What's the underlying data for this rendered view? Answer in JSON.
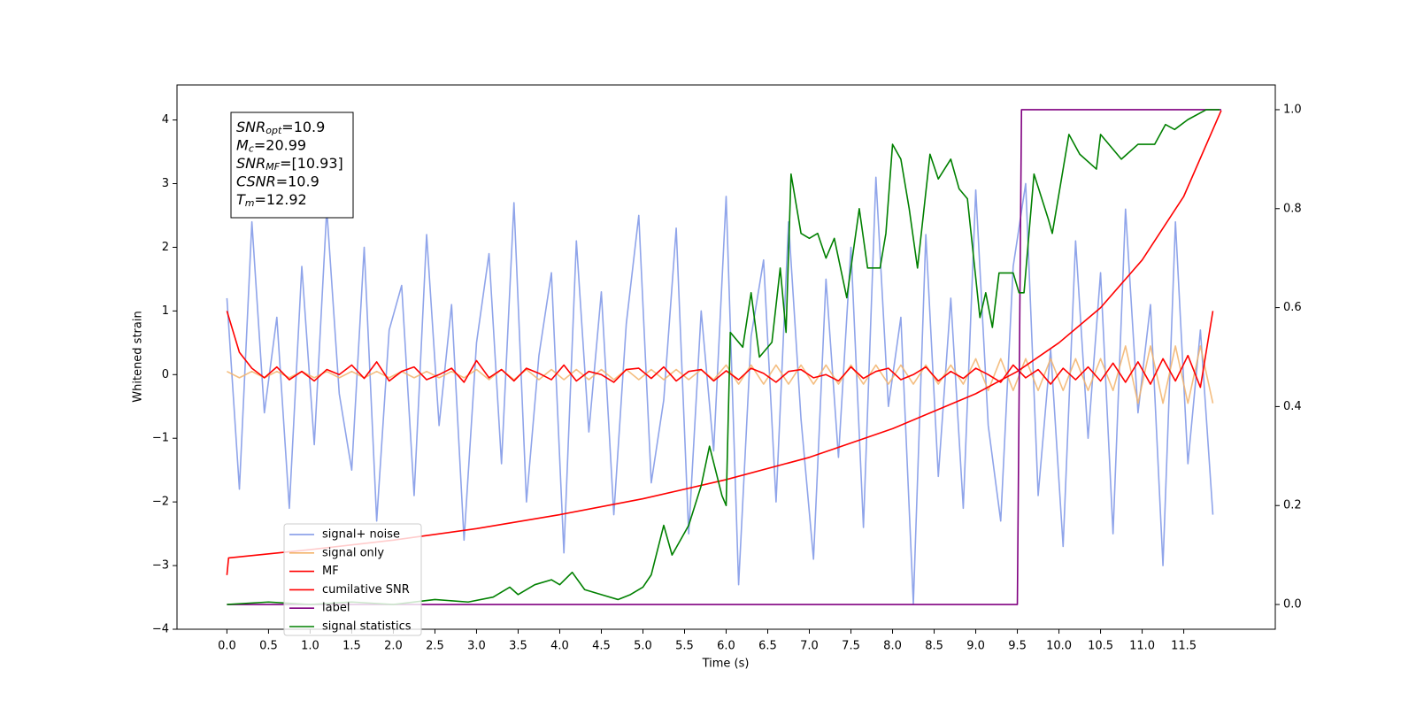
{
  "chart_data": {
    "type": "line",
    "xlabel": "Time (s)",
    "ylabel": "Whitened strain",
    "xlim": [
      -0.6,
      12.6
    ],
    "ylim": [
      -4.0,
      4.55
    ],
    "y2lim": [
      -0.05,
      1.05
    ],
    "xticks": [
      {
        "value": 0,
        "label": "0.0"
      },
      {
        "value": 0.5,
        "label": "0.5"
      },
      {
        "value": 1,
        "label": "1.0"
      },
      {
        "value": 1.5,
        "label": "1.5"
      },
      {
        "value": 2,
        "label": "2.0"
      },
      {
        "value": 2.5,
        "label": "2.5"
      },
      {
        "value": 3,
        "label": "3.0"
      },
      {
        "value": 3.5,
        "label": "3.5"
      },
      {
        "value": 4,
        "label": "4.0"
      },
      {
        "value": 4.5,
        "label": "4.5"
      },
      {
        "value": 5,
        "label": "5.0"
      },
      {
        "value": 5.5,
        "label": "5.5"
      },
      {
        "value": 6,
        "label": "6.0"
      },
      {
        "value": 6.5,
        "label": "6.5"
      },
      {
        "value": 7,
        "label": "7.0"
      },
      {
        "value": 7.5,
        "label": "7.5"
      },
      {
        "value": 8,
        "label": "8.0"
      },
      {
        "value": 8.5,
        "label": "8.5"
      },
      {
        "value": 9,
        "label": "9.0"
      },
      {
        "value": 9.5,
        "label": "9.5"
      },
      {
        "value": 10,
        "label": "10.0"
      },
      {
        "value": 10.5,
        "label": "10.5"
      },
      {
        "value": 11,
        "label": "11.0"
      },
      {
        "value": 11.5,
        "label": "11.5"
      }
    ],
    "yticks": [
      {
        "value": -4,
        "label": "−4"
      },
      {
        "value": -3,
        "label": "−3"
      },
      {
        "value": -2,
        "label": "−2"
      },
      {
        "value": -1,
        "label": "−1"
      },
      0,
      1,
      2,
      3,
      4
    ],
    "y2ticks": [
      {
        "value": 0,
        "label": "0.0"
      },
      {
        "value": 0.2,
        "label": "0.2"
      },
      {
        "value": 0.4,
        "label": "0.4"
      },
      {
        "value": 0.6,
        "label": "0.6"
      },
      {
        "value": 0.8,
        "label": "0.8"
      },
      {
        "value": 1,
        "label": "1.0"
      }
    ],
    "x": [
      0,
      0.15,
      0.3,
      0.45,
      0.6,
      0.75,
      0.9,
      1.05,
      1.2,
      1.35,
      1.5,
      1.65,
      1.8,
      1.95,
      2.1,
      2.25,
      2.4,
      2.55,
      2.7,
      2.85,
      3,
      3.15,
      3.3,
      3.45,
      3.6,
      3.75,
      3.9,
      4.05,
      4.2,
      4.35,
      4.5,
      4.65,
      4.8,
      4.95,
      5.1,
      5.25,
      5.4,
      5.55,
      5.7,
      5.85,
      6,
      6.15,
      6.3,
      6.45,
      6.6,
      6.75,
      6.9,
      7.05,
      7.2,
      7.35,
      7.5,
      7.65,
      7.8,
      7.95,
      8.1,
      8.25,
      8.4,
      8.55,
      8.7,
      8.85,
      9,
      9.15,
      9.3,
      9.45,
      9.6,
      9.75,
      9.9,
      10.05,
      10.2,
      10.35,
      10.5,
      10.65,
      10.8,
      10.95,
      11.1,
      11.25,
      11.4,
      11.55,
      11.7,
      11.85
    ],
    "series": [
      {
        "name": "signal+ noise",
        "color": "#7b94e6",
        "values": [
          1.2,
          -1.8,
          2.4,
          -0.6,
          0.9,
          -2.1,
          1.7,
          -1.1,
          2.6,
          -0.3,
          -1.5,
          2.0,
          -2.3,
          0.7,
          1.4,
          -1.9,
          2.2,
          -0.8,
          1.1,
          -2.6,
          0.5,
          1.9,
          -1.4,
          2.7,
          -2.0,
          0.3,
          1.6,
          -2.8,
          2.1,
          -0.9,
          1.3,
          -2.2,
          0.8,
          2.5,
          -1.7,
          -0.4,
          2.3,
          -2.5,
          1.0,
          -1.2,
          2.8,
          -3.3,
          0.6,
          1.8,
          -2.0,
          2.4,
          -0.7,
          -2.9,
          1.5,
          -1.3,
          2.0,
          -2.4,
          3.1,
          -0.5,
          0.9,
          -3.6,
          2.2,
          -1.6,
          1.2,
          -2.1,
          2.9,
          -0.8,
          -2.3,
          1.7,
          3.0,
          -1.9,
          0.4,
          -2.7,
          2.1,
          -1.0,
          1.6,
          -2.5,
          2.6,
          -0.6,
          1.1,
          -3.0,
          2.4,
          -1.4,
          0.7,
          -2.2
        ]
      },
      {
        "name": "signal only",
        "color": "#f2b36b",
        "values": [
          0.05,
          -0.05,
          0.05,
          -0.05,
          0.05,
          -0.05,
          0.05,
          -0.05,
          0.05,
          -0.05,
          0.05,
          -0.05,
          0.05,
          -0.05,
          0.05,
          -0.05,
          0.05,
          -0.05,
          0.05,
          -0.05,
          0.08,
          -0.08,
          0.08,
          -0.08,
          0.08,
          -0.08,
          0.08,
          -0.08,
          0.08,
          -0.08,
          0.08,
          -0.08,
          0.08,
          -0.08,
          0.08,
          -0.08,
          0.08,
          -0.08,
          0.08,
          -0.08,
          0.15,
          -0.15,
          0.15,
          -0.15,
          0.15,
          -0.15,
          0.15,
          -0.15,
          0.15,
          -0.15,
          0.15,
          -0.15,
          0.15,
          -0.15,
          0.15,
          -0.15,
          0.15,
          -0.15,
          0.15,
          -0.15,
          0.25,
          -0.25,
          0.25,
          -0.25,
          0.25,
          -0.25,
          0.25,
          -0.25,
          0.25,
          -0.25,
          0.25,
          -0.25,
          0.45,
          -0.45,
          0.45,
          -0.45,
          0.45,
          -0.45,
          0.45,
          -0.45
        ]
      },
      {
        "name": "MF",
        "color": "#ff0000",
        "values": [
          1.0,
          0.35,
          0.1,
          -0.05,
          0.12,
          -0.08,
          0.05,
          -0.1,
          0.08,
          0.0,
          0.15,
          -0.06,
          0.2,
          -0.1,
          0.05,
          0.12,
          -0.08,
          0.0,
          0.1,
          -0.12,
          0.22,
          -0.05,
          0.08,
          -0.1,
          0.1,
          0.02,
          -0.08,
          0.15,
          -0.1,
          0.05,
          0.0,
          -0.12,
          0.08,
          0.1,
          -0.06,
          0.12,
          -0.1,
          0.05,
          0.08,
          -0.1,
          0.06,
          -0.08,
          0.1,
          0.02,
          -0.12,
          0.05,
          0.08,
          -0.05,
          0.0,
          -0.1,
          0.12,
          -0.06,
          0.05,
          0.1,
          -0.08,
          0.0,
          0.12,
          -0.1,
          0.05,
          -0.06,
          0.1,
          0.0,
          -0.12,
          0.15,
          -0.05,
          0.08,
          -0.15,
          0.1,
          -0.08,
          0.12,
          -0.1,
          0.18,
          -0.12,
          0.2,
          -0.15,
          0.25,
          -0.1,
          0.3,
          -0.2,
          1.0
        ]
      },
      {
        "name": "cumilative SNR",
        "color": "#ff0000",
        "x": [
          0,
          0.02,
          1,
          2,
          3,
          4,
          5,
          6,
          7,
          8,
          9,
          9.5,
          10,
          10.5,
          11,
          11.5,
          11.95
        ],
        "values": [
          -3.15,
          -2.88,
          -2.75,
          -2.6,
          -2.42,
          -2.2,
          -1.95,
          -1.65,
          -1.3,
          -0.85,
          -0.3,
          0.05,
          0.5,
          1.05,
          1.8,
          2.8,
          4.15
        ]
      },
      {
        "name": "label",
        "color": "#800080",
        "axis": "y2",
        "x": [
          0,
          9.5,
          9.55,
          11.95
        ],
        "values": [
          0,
          0,
          1,
          1
        ]
      },
      {
        "name": "signal statistics",
        "color": "#008000",
        "axis": "y2",
        "x": [
          0,
          0.5,
          1,
          1.5,
          2,
          2.5,
          2.9,
          3.2,
          3.4,
          3.5,
          3.7,
          3.9,
          4.0,
          4.15,
          4.3,
          4.5,
          4.7,
          4.85,
          5.0,
          5.1,
          5.25,
          5.35,
          5.55,
          5.7,
          5.8,
          5.95,
          6.0,
          6.05,
          6.2,
          6.3,
          6.4,
          6.55,
          6.65,
          6.72,
          6.78,
          6.9,
          7.0,
          7.1,
          7.2,
          7.3,
          7.45,
          7.6,
          7.7,
          7.85,
          7.92,
          8.0,
          8.1,
          8.2,
          8.3,
          8.45,
          8.55,
          8.7,
          8.8,
          8.9,
          9.05,
          9.12,
          9.2,
          9.28,
          9.45,
          9.52,
          9.58,
          9.7,
          9.87,
          9.92,
          10.12,
          10.25,
          10.45,
          10.5,
          10.75,
          10.95,
          11.15,
          11.28,
          11.39,
          11.55,
          11.77,
          11.93
        ],
        "values": [
          0.0,
          0.005,
          0.0,
          0.005,
          0.0,
          0.01,
          0.005,
          0.015,
          0.035,
          0.02,
          0.04,
          0.05,
          0.04,
          0.065,
          0.03,
          0.02,
          0.01,
          0.02,
          0.035,
          0.06,
          0.16,
          0.1,
          0.16,
          0.24,
          0.32,
          0.22,
          0.2,
          0.55,
          0.52,
          0.63,
          0.5,
          0.53,
          0.68,
          0.55,
          0.87,
          0.75,
          0.74,
          0.75,
          0.7,
          0.74,
          0.62,
          0.8,
          0.68,
          0.68,
          0.75,
          0.93,
          0.9,
          0.8,
          0.68,
          0.91,
          0.86,
          0.9,
          0.84,
          0.82,
          0.58,
          0.63,
          0.56,
          0.67,
          0.67,
          0.63,
          0.63,
          0.87,
          0.78,
          0.75,
          0.95,
          0.91,
          0.88,
          0.95,
          0.9,
          0.93,
          0.93,
          0.97,
          0.96,
          0.98,
          1.0,
          1.0
        ]
      }
    ],
    "annotation": [
      {
        "symbol": "SNR",
        "sub": "opt",
        "text": "=10.9"
      },
      {
        "symbol": "M",
        "sub": "c",
        "text": "=20.99"
      },
      {
        "symbol": "SNR",
        "sub": "MF",
        "text": "=[10.93]"
      },
      {
        "symbol": "CSNR",
        "text": "=10.9"
      },
      {
        "symbol": "T",
        "sub": "m",
        "text": "=12.92"
      }
    ]
  }
}
